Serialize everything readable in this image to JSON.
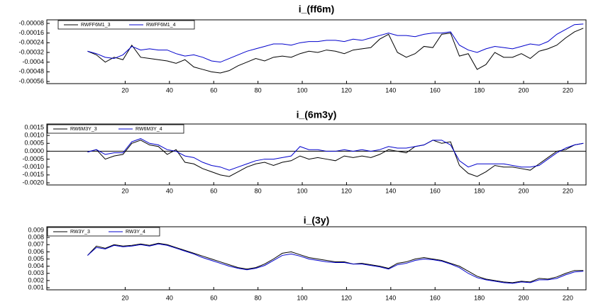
{
  "chart_data": [
    {
      "type": "line",
      "title": "i_(ff6m)",
      "x": [
        3,
        7,
        11,
        15,
        19,
        23,
        27,
        31,
        35,
        39,
        43,
        47,
        51,
        55,
        59,
        63,
        67,
        71,
        75,
        79,
        83,
        87,
        91,
        95,
        99,
        103,
        107,
        111,
        115,
        119,
        123,
        127,
        131,
        135,
        139,
        143,
        147,
        151,
        155,
        159,
        163,
        167,
        171,
        175,
        179,
        183,
        187,
        191,
        195,
        199,
        203,
        207,
        211,
        215,
        219,
        223,
        227
      ],
      "series": [
        {
          "name": "RWFF6M1_3",
          "color": "#000000",
          "values": [
            -0.00031,
            -0.00034,
            -0.0004,
            -0.00036,
            -0.00038,
            -0.00026,
            -0.00036,
            -0.00037,
            -0.00038,
            -0.00039,
            -0.00041,
            -0.00038,
            -0.00044,
            -0.00046,
            -0.00048,
            -0.00049,
            -0.00047,
            -0.00043,
            -0.0004,
            -0.00037,
            -0.00039,
            -0.00036,
            -0.00035,
            -0.00036,
            -0.00033,
            -0.00031,
            -0.00032,
            -0.0003,
            -0.00031,
            -0.00033,
            -0.0003,
            -0.00029,
            -0.00028,
            -0.00021,
            -0.00017,
            -0.00032,
            -0.00036,
            -0.00033,
            -0.00027,
            -0.00028,
            -0.00017,
            -0.00016,
            -0.00035,
            -0.00033,
            -0.00046,
            -0.00042,
            -0.00032,
            -0.00036,
            -0.00036,
            -0.00033,
            -0.00037,
            -0.00031,
            -0.00029,
            -0.00026,
            -0.0002,
            -0.00015,
            -0.00012
          ]
        },
        {
          "name": "RWFF6M1_4",
          "color": "#0000cc",
          "values": [
            -0.00031,
            -0.00033,
            -0.00036,
            -0.00037,
            -0.00034,
            -0.00027,
            -0.0003,
            -0.00029,
            -0.0003,
            -0.0003,
            -0.00033,
            -0.00035,
            -0.00034,
            -0.00036,
            -0.00039,
            -0.0004,
            -0.00037,
            -0.00034,
            -0.00031,
            -0.00029,
            -0.00027,
            -0.00025,
            -0.00025,
            -0.00026,
            -0.00024,
            -0.00023,
            -0.00023,
            -0.00022,
            -0.00022,
            -0.00023,
            -0.00021,
            -0.00022,
            -0.0002,
            -0.00018,
            -0.00016,
            -0.00018,
            -0.00018,
            -0.00019,
            -0.00017,
            -0.00016,
            -0.00016,
            -0.00015,
            -0.00026,
            -0.0003,
            -0.00032,
            -0.00029,
            -0.00027,
            -0.00028,
            -0.00029,
            -0.00027,
            -0.00025,
            -0.00026,
            -0.00023,
            -0.00017,
            -0.00013,
            -9e-05,
            -8.5e-05
          ]
        }
      ],
      "xlim": [
        -15.4,
        228.2
      ],
      "xticks": [
        20,
        40,
        60,
        80,
        100,
        120,
        140,
        160,
        180,
        200,
        220
      ],
      "ylim": [
        -0.00056,
        -8e-05
      ],
      "yticks": [
        -8e-05,
        -0.00016,
        -0.00024,
        -0.00032,
        -0.0004,
        -0.00048,
        -0.00056
      ],
      "legend": "top-left",
      "grid": false,
      "zeroline": false
    },
    {
      "type": "line",
      "title": "i_(6m3y)",
      "x": [
        3,
        7,
        11,
        15,
        19,
        23,
        27,
        31,
        35,
        39,
        43,
        47,
        51,
        55,
        59,
        63,
        67,
        71,
        75,
        79,
        83,
        87,
        91,
        95,
        99,
        103,
        107,
        111,
        115,
        119,
        123,
        127,
        131,
        135,
        139,
        143,
        147,
        151,
        155,
        159,
        163,
        167,
        171,
        175,
        179,
        183,
        187,
        191,
        195,
        199,
        203,
        207,
        211,
        215,
        219,
        223,
        227
      ],
      "series": [
        {
          "name": "RW6M3Y_3",
          "color": "#000000",
          "values": [
            -5e-05,
            0.0001,
            -0.0005,
            -0.0003,
            -0.0002,
            0.0005,
            0.0007,
            0.0004,
            0.0003,
            -0.0002,
            0.0001,
            -0.0007,
            -0.0008,
            -0.0011,
            -0.0013,
            -0.0015,
            -0.0016,
            -0.0013,
            -0.001,
            -0.0008,
            -0.0007,
            -0.0009,
            -0.0007,
            -0.0006,
            -0.0003,
            -0.0005,
            -0.0004,
            -0.0005,
            -0.0006,
            -0.0003,
            -0.0004,
            -0.0003,
            -0.0004,
            -0.0002,
            0.0001,
            0,
            -0.0001,
            0.0003,
            0.0004,
            0.0007,
            0.0005,
            0.0006,
            -0.0009,
            -0.0014,
            -0.0016,
            -0.0013,
            -0.0009,
            -0.001,
            -0.001,
            -0.0011,
            -0.0012,
            -0.0008,
            -0.0004,
            0,
            0.0001,
            0.0004,
            0.0005
          ]
        },
        {
          "name": "RW6M3Y_4",
          "color": "#0000cc",
          "values": [
            -5e-05,
            0.0001,
            -0.0002,
            -0.0001,
            -0.0001,
            0.0006,
            0.0008,
            0.0005,
            0.0004,
            0.0001,
            0,
            -0.0003,
            -0.0004,
            -0.0007,
            -0.0009,
            -0.001,
            -0.0012,
            -0.001,
            -0.0008,
            -0.0006,
            -0.0005,
            -0.0005,
            -0.0004,
            -0.0003,
            0.0003,
            0.0001,
            0.0001,
            0,
            0,
            0.0001,
            0,
            0.0001,
            0,
            0.0001,
            0.0003,
            0.0002,
            0.0002,
            0.0003,
            0.0004,
            0.0007,
            0.0007,
            0.0004,
            -0.0006,
            -0.001,
            -0.0008,
            -0.0008,
            -0.0008,
            -0.0008,
            -0.0009,
            -0.001,
            -0.001,
            -0.0009,
            -0.0005,
            -0.0001,
            0.0002,
            0.0004,
            0.0005
          ]
        }
      ],
      "xlim": [
        -15.4,
        228.2
      ],
      "xticks": [
        20,
        40,
        60,
        80,
        100,
        120,
        140,
        160,
        180,
        200,
        220
      ],
      "ylim": [
        -0.002,
        0.0015
      ],
      "yticks": [
        0.0015,
        {
          "value": 0.001,
          "label": "0.0010"
        },
        0.0005,
        {
          "value": 0,
          "label": "0.0000"
        },
        -0.0005,
        {
          "value": -0.001,
          "label": "-0.0010"
        },
        -0.0015,
        {
          "value": -0.002,
          "label": "-0.0020"
        }
      ],
      "legend": "top-left",
      "grid": false,
      "zeroline": true
    },
    {
      "type": "line",
      "title": "i_(3y)",
      "x": [
        3,
        7,
        11,
        15,
        19,
        23,
        27,
        31,
        35,
        39,
        43,
        47,
        51,
        55,
        59,
        63,
        67,
        71,
        75,
        79,
        83,
        87,
        91,
        95,
        99,
        103,
        107,
        111,
        115,
        119,
        123,
        127,
        131,
        135,
        139,
        143,
        147,
        151,
        155,
        159,
        163,
        167,
        171,
        175,
        179,
        183,
        187,
        191,
        195,
        199,
        203,
        207,
        211,
        215,
        219,
        223,
        227
      ],
      "series": [
        {
          "name": "RW3Y_3",
          "color": "#000000",
          "values": [
            0.0055,
            0.0068,
            0.0065,
            0.007,
            0.0068,
            0.0069,
            0.0071,
            0.0069,
            0.0072,
            0.007,
            0.0066,
            0.0062,
            0.0058,
            0.0054,
            0.005,
            0.0046,
            0.0042,
            0.0038,
            0.0036,
            0.0038,
            0.0043,
            0.005,
            0.0058,
            0.006,
            0.0056,
            0.0052,
            0.005,
            0.0048,
            0.0046,
            0.0046,
            0.0043,
            0.0044,
            0.0042,
            0.004,
            0.0037,
            0.0044,
            0.0046,
            0.005,
            0.0052,
            0.005,
            0.0048,
            0.0044,
            0.004,
            0.0033,
            0.0026,
            0.0022,
            0.002,
            0.0018,
            0.0017,
            0.0019,
            0.0018,
            0.0023,
            0.0022,
            0.0025,
            0.003,
            0.0034,
            0.0034
          ]
        },
        {
          "name": "RW3Y_4",
          "color": "#0000cc",
          "values": [
            0.0055,
            0.0066,
            0.0064,
            0.0069,
            0.0067,
            0.0068,
            0.007,
            0.0068,
            0.0071,
            0.0069,
            0.0065,
            0.0061,
            0.0057,
            0.0052,
            0.0048,
            0.0044,
            0.004,
            0.0037,
            0.0035,
            0.0037,
            0.0041,
            0.0048,
            0.0055,
            0.0057,
            0.0054,
            0.005,
            0.0048,
            0.0046,
            0.0045,
            0.0045,
            0.0043,
            0.0043,
            0.0041,
            0.0039,
            0.0036,
            0.0042,
            0.0044,
            0.0048,
            0.005,
            0.0049,
            0.0047,
            0.0043,
            0.0038,
            0.003,
            0.0024,
            0.0021,
            0.0019,
            0.0017,
            0.0016,
            0.0018,
            0.0017,
            0.0021,
            0.0021,
            0.0023,
            0.0028,
            0.0032,
            0.0033
          ]
        }
      ],
      "xlim": [
        -15.4,
        228.2
      ],
      "xticks": [
        20,
        40,
        60,
        80,
        100,
        120,
        140,
        160,
        180,
        200,
        220
      ],
      "ylim": [
        0.001,
        0.009
      ],
      "yticks": [
        0.009,
        0.008,
        0.007,
        0.006,
        0.005,
        0.004,
        0.003,
        0.002,
        0.001
      ],
      "legend": "top-left",
      "grid": false,
      "zeroline": false
    }
  ]
}
